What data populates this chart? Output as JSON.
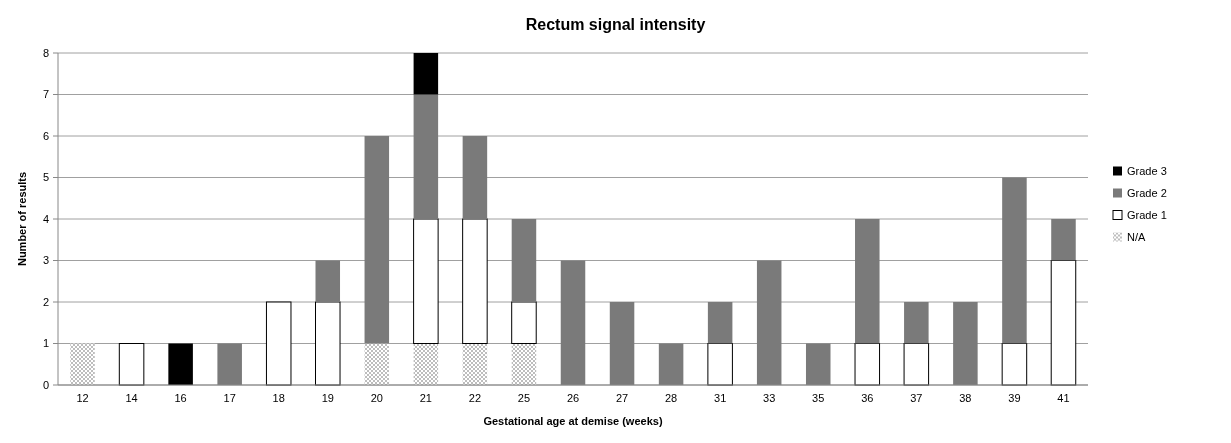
{
  "chart_data": {
    "type": "bar",
    "title": "Rectum signal intensity",
    "xlabel": "Gestational age at demise (weeks)",
    "ylabel": "Number of results",
    "categories": [
      "12",
      "14",
      "16",
      "17",
      "18",
      "19",
      "20",
      "21",
      "22",
      "25",
      "26",
      "27",
      "28",
      "31",
      "33",
      "35",
      "36",
      "37",
      "38",
      "39",
      "41"
    ],
    "stacked": true,
    "ylim": [
      0,
      8
    ],
    "yticks": [
      0,
      1,
      2,
      3,
      4,
      5,
      6,
      7,
      8
    ],
    "grid": "y",
    "legend": "right",
    "series": [
      {
        "name": "N/A",
        "color": "#bdbdbd",
        "values": [
          1,
          0,
          0,
          0,
          0,
          0,
          1,
          1,
          1,
          1,
          0,
          0,
          0,
          0,
          0,
          0,
          0,
          0,
          0,
          0,
          0
        ]
      },
      {
        "name": "Grade 1",
        "color": "#ffffff",
        "values": [
          0,
          1,
          0,
          0,
          2,
          2,
          0,
          3,
          3,
          1,
          0,
          0,
          0,
          1,
          0,
          0,
          1,
          1,
          0,
          1,
          3
        ]
      },
      {
        "name": "Grade 2",
        "color": "#7a7a7a",
        "values": [
          0,
          0,
          0,
          1,
          0,
          1,
          5,
          3,
          2,
          2,
          3,
          2,
          1,
          1,
          3,
          1,
          3,
          1,
          2,
          4,
          1
        ]
      },
      {
        "name": "Grade 3",
        "color": "#000000",
        "values": [
          0,
          0,
          1,
          0,
          0,
          0,
          0,
          1,
          0,
          0,
          0,
          0,
          0,
          0,
          0,
          0,
          0,
          0,
          0,
          0,
          0
        ]
      }
    ]
  }
}
